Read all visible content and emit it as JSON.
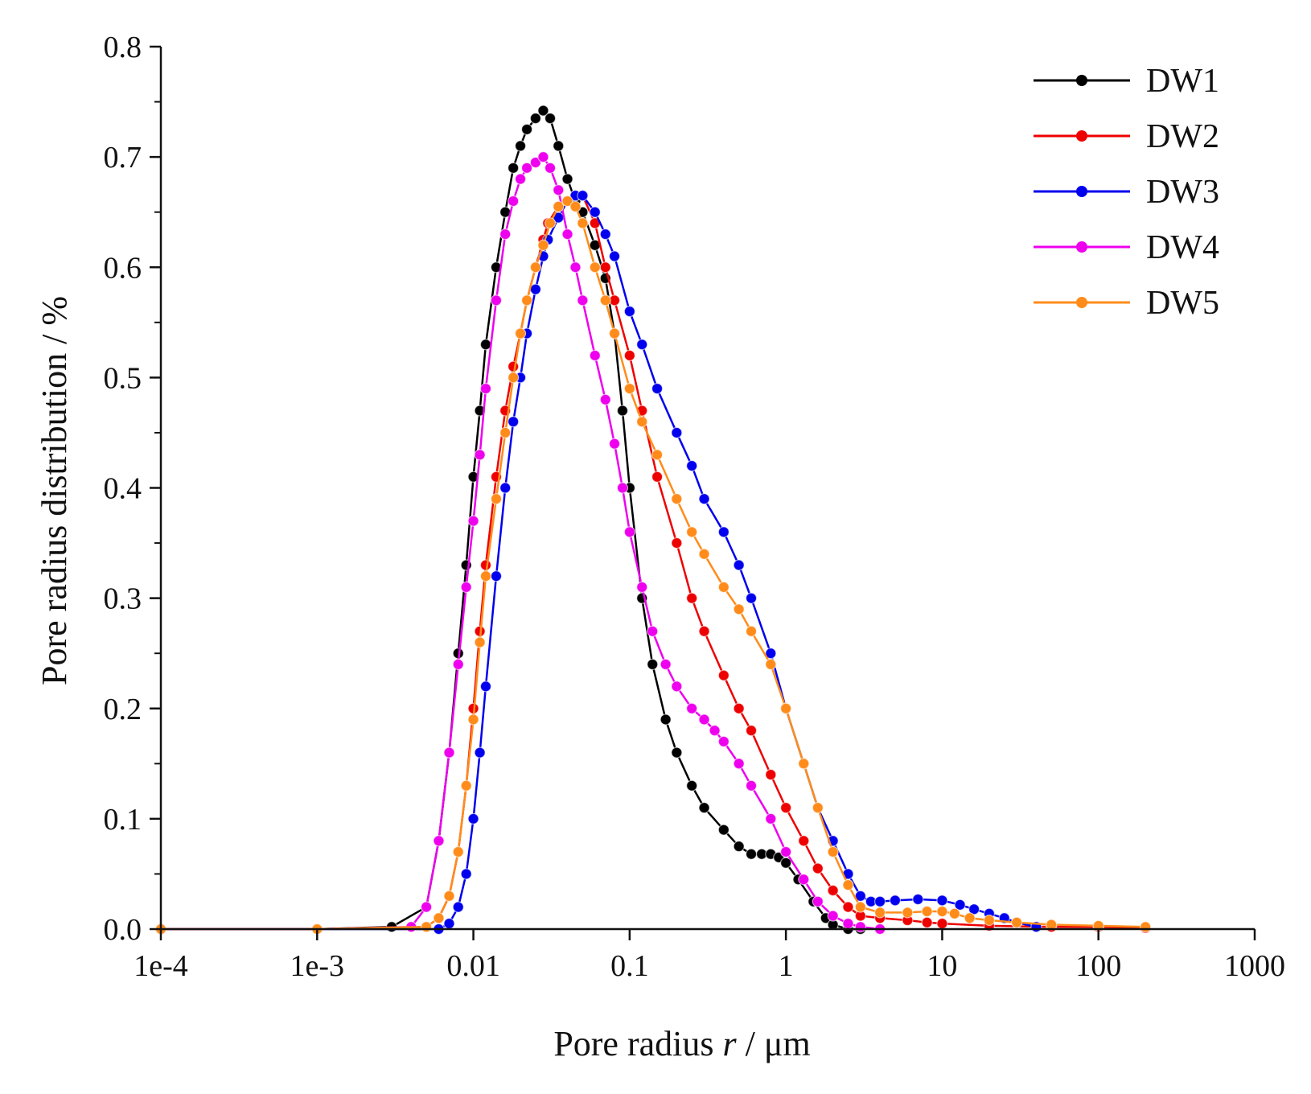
{
  "chart_data": {
    "type": "line",
    "title": "",
    "xlabel": {
      "prefix": "Pore radius ",
      "variable": "r",
      "suffix": " / μm"
    },
    "ylabel": "Pore radius distribution / %",
    "x_scale": "log",
    "xlim": [
      0.0001,
      1000
    ],
    "ylim": [
      0,
      0.8
    ],
    "x_ticks": [
      0.0001,
      0.001,
      0.01,
      0.1,
      1,
      10,
      100,
      1000
    ],
    "x_tick_labels": [
      "1e-4",
      "1e-3",
      "0.01",
      "0.1",
      "1",
      "10",
      "100",
      "1000"
    ],
    "y_ticks": [
      0,
      0.1,
      0.2,
      0.3,
      0.4,
      0.5,
      0.6,
      0.7,
      0.8
    ],
    "y_tick_labels": [
      "0.0",
      "0.1",
      "0.2",
      "0.3",
      "0.4",
      "0.5",
      "0.6",
      "0.7",
      "0.8"
    ],
    "grid": false,
    "legend_position": "top-right",
    "series": [
      {
        "name": "DW1",
        "color": "#000000",
        "x": [
          0.0001,
          0.001,
          0.003,
          0.005,
          0.006,
          0.007,
          0.008,
          0.009,
          0.01,
          0.011,
          0.012,
          0.014,
          0.016,
          0.018,
          0.02,
          0.022,
          0.025,
          0.028,
          0.031,
          0.035,
          0.04,
          0.045,
          0.05,
          0.06,
          0.07,
          0.08,
          0.09,
          0.1,
          0.12,
          0.14,
          0.17,
          0.2,
          0.25,
          0.3,
          0.4,
          0.5,
          0.6,
          0.7,
          0.8,
          0.9,
          1.0,
          1.2,
          1.5,
          1.8,
          2.0,
          2.5,
          3.0
        ],
        "y": [
          0,
          0,
          0.002,
          0.02,
          0.08,
          0.16,
          0.25,
          0.33,
          0.41,
          0.47,
          0.53,
          0.6,
          0.65,
          0.69,
          0.71,
          0.725,
          0.735,
          0.742,
          0.735,
          0.71,
          0.68,
          0.66,
          0.65,
          0.62,
          0.59,
          0.54,
          0.47,
          0.4,
          0.3,
          0.24,
          0.19,
          0.16,
          0.13,
          0.11,
          0.09,
          0.075,
          0.068,
          0.068,
          0.068,
          0.065,
          0.06,
          0.045,
          0.025,
          0.01,
          0.004,
          0,
          0
        ]
      },
      {
        "name": "DW2",
        "color": "#ee0000",
        "x": [
          0.0001,
          0.001,
          0.005,
          0.006,
          0.007,
          0.008,
          0.009,
          0.01,
          0.011,
          0.012,
          0.014,
          0.016,
          0.018,
          0.02,
          0.022,
          0.025,
          0.028,
          0.03,
          0.035,
          0.04,
          0.045,
          0.05,
          0.06,
          0.07,
          0.08,
          0.1,
          0.12,
          0.15,
          0.2,
          0.25,
          0.3,
          0.4,
          0.5,
          0.6,
          0.8,
          1.0,
          1.3,
          1.6,
          2.0,
          2.5,
          3.0,
          4.0,
          6.0,
          8.0,
          10,
          20,
          50,
          100,
          200
        ],
        "y": [
          0,
          0,
          0.002,
          0.01,
          0.03,
          0.07,
          0.13,
          0.2,
          0.27,
          0.33,
          0.41,
          0.47,
          0.51,
          0.54,
          0.57,
          0.6,
          0.625,
          0.64,
          0.655,
          0.66,
          0.665,
          0.665,
          0.64,
          0.6,
          0.57,
          0.52,
          0.47,
          0.41,
          0.35,
          0.3,
          0.27,
          0.23,
          0.2,
          0.18,
          0.14,
          0.11,
          0.08,
          0.055,
          0.035,
          0.02,
          0.012,
          0.01,
          0.008,
          0.006,
          0.005,
          0.003,
          0.002,
          0.002,
          0.001
        ]
      },
      {
        "name": "DW3",
        "color": "#0000ee",
        "x": [
          0.0001,
          0.001,
          0.006,
          0.007,
          0.008,
          0.009,
          0.01,
          0.011,
          0.012,
          0.014,
          0.016,
          0.018,
          0.02,
          0.022,
          0.025,
          0.028,
          0.03,
          0.035,
          0.04,
          0.045,
          0.05,
          0.06,
          0.07,
          0.08,
          0.1,
          0.12,
          0.15,
          0.2,
          0.25,
          0.3,
          0.4,
          0.5,
          0.6,
          0.8,
          1.0,
          1.3,
          1.6,
          2.0,
          2.5,
          3.0,
          3.5,
          4.0,
          5.0,
          7.0,
          10,
          13,
          16,
          20,
          25,
          30,
          40
        ],
        "y": [
          0,
          0,
          0,
          0.005,
          0.02,
          0.05,
          0.1,
          0.16,
          0.22,
          0.32,
          0.4,
          0.46,
          0.5,
          0.54,
          0.58,
          0.61,
          0.625,
          0.645,
          0.66,
          0.665,
          0.665,
          0.65,
          0.63,
          0.61,
          0.56,
          0.53,
          0.49,
          0.45,
          0.42,
          0.39,
          0.36,
          0.33,
          0.3,
          0.25,
          0.2,
          0.15,
          0.11,
          0.08,
          0.05,
          0.03,
          0.025,
          0.025,
          0.026,
          0.027,
          0.026,
          0.022,
          0.018,
          0.014,
          0.01,
          0.006,
          0.002
        ]
      },
      {
        "name": "DW4",
        "color": "#ee00ee",
        "x": [
          0.0001,
          0.001,
          0.004,
          0.005,
          0.006,
          0.007,
          0.008,
          0.009,
          0.01,
          0.011,
          0.012,
          0.014,
          0.016,
          0.018,
          0.02,
          0.022,
          0.025,
          0.028,
          0.031,
          0.035,
          0.04,
          0.045,
          0.05,
          0.06,
          0.07,
          0.08,
          0.09,
          0.1,
          0.12,
          0.14,
          0.17,
          0.2,
          0.25,
          0.3,
          0.35,
          0.4,
          0.5,
          0.6,
          0.8,
          1.0,
          1.3,
          1.6,
          2.0,
          2.5,
          3.0,
          4.0
        ],
        "y": [
          0,
          0,
          0.002,
          0.02,
          0.08,
          0.16,
          0.24,
          0.31,
          0.37,
          0.43,
          0.49,
          0.57,
          0.63,
          0.66,
          0.68,
          0.69,
          0.695,
          0.7,
          0.69,
          0.67,
          0.63,
          0.6,
          0.57,
          0.52,
          0.48,
          0.44,
          0.4,
          0.36,
          0.31,
          0.27,
          0.24,
          0.22,
          0.2,
          0.19,
          0.18,
          0.17,
          0.15,
          0.13,
          0.1,
          0.07,
          0.045,
          0.025,
          0.012,
          0.005,
          0.002,
          0
        ]
      },
      {
        "name": "DW5",
        "color": "#ff8c1a",
        "x": [
          0.0001,
          0.001,
          0.005,
          0.006,
          0.007,
          0.008,
          0.009,
          0.01,
          0.011,
          0.012,
          0.014,
          0.016,
          0.018,
          0.02,
          0.022,
          0.025,
          0.028,
          0.031,
          0.035,
          0.04,
          0.045,
          0.05,
          0.06,
          0.07,
          0.08,
          0.1,
          0.12,
          0.15,
          0.2,
          0.25,
          0.3,
          0.4,
          0.5,
          0.6,
          0.8,
          1.0,
          1.3,
          1.6,
          2.0,
          2.5,
          3.0,
          4.0,
          6.0,
          8.0,
          10,
          12,
          15,
          20,
          30,
          50,
          100,
          200
        ],
        "y": [
          0,
          0,
          0.002,
          0.01,
          0.03,
          0.07,
          0.13,
          0.19,
          0.26,
          0.32,
          0.39,
          0.45,
          0.5,
          0.54,
          0.57,
          0.6,
          0.62,
          0.64,
          0.655,
          0.66,
          0.655,
          0.64,
          0.6,
          0.57,
          0.54,
          0.49,
          0.46,
          0.43,
          0.39,
          0.36,
          0.34,
          0.31,
          0.29,
          0.27,
          0.24,
          0.2,
          0.15,
          0.11,
          0.07,
          0.04,
          0.02,
          0.015,
          0.015,
          0.016,
          0.016,
          0.014,
          0.01,
          0.008,
          0.006,
          0.004,
          0.003,
          0.002
        ]
      }
    ]
  }
}
